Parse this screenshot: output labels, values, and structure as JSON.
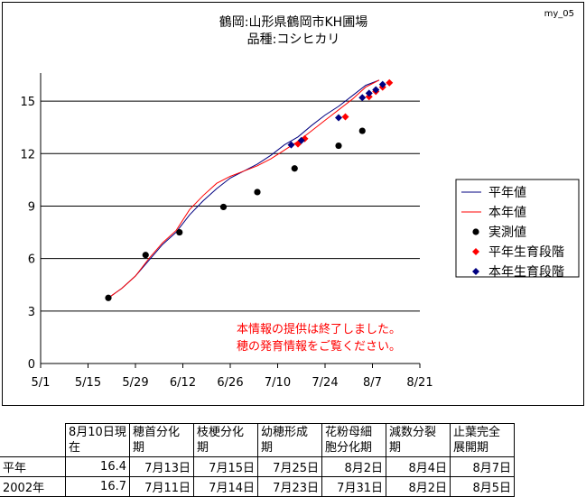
{
  "header": {
    "title_line1": "鶴岡:山形県鶴岡市KH圃場",
    "title_line2": "品種:コシヒカリ",
    "corner_id": "my_05"
  },
  "notice": {
    "line1": "本情報の提供は終了しました。",
    "line2": "穂の発育情報をご覧ください。"
  },
  "chart_data": {
    "type": "line",
    "title": "鶴岡:山形県鶴岡市KH圃場 品種:コシヒカリ",
    "x_tick_labels": [
      "5/1",
      "5/15",
      "5/29",
      "6/12",
      "6/26",
      "7/10",
      "7/24",
      "8/7",
      "8/21"
    ],
    "x_tick_dates": [
      "05-01",
      "05-15",
      "05-29",
      "06-12",
      "06-26",
      "07-10",
      "07-24",
      "08-07",
      "08-21"
    ],
    "xlim": [
      "05-01",
      "08-21"
    ],
    "y_ticks": [
      0,
      3,
      6,
      9,
      12,
      15
    ],
    "ylim": [
      0,
      16.5
    ],
    "grid": "horizontal",
    "legend_position": "right",
    "series": [
      {
        "name": "平年値",
        "kind": "line",
        "color": "#000080",
        "points": [
          [
            "05-21",
            3.75
          ],
          [
            "05-25",
            4.3
          ],
          [
            "05-29",
            5.0
          ],
          [
            "06-02",
            5.9
          ],
          [
            "06-06",
            6.8
          ],
          [
            "06-10",
            7.5
          ],
          [
            "06-14",
            8.5
          ],
          [
            "06-18",
            9.3
          ],
          [
            "06-22",
            10.0
          ],
          [
            "06-26",
            10.6
          ],
          [
            "06-30",
            11.0
          ],
          [
            "07-04",
            11.4
          ],
          [
            "07-08",
            11.9
          ],
          [
            "07-12",
            12.5
          ],
          [
            "07-16",
            12.95
          ],
          [
            "07-20",
            13.6
          ],
          [
            "07-24",
            14.2
          ],
          [
            "07-28",
            14.7
          ],
          [
            "08-01",
            15.3
          ],
          [
            "08-05",
            15.9
          ],
          [
            "08-09",
            16.2
          ]
        ]
      },
      {
        "name": "本年値",
        "kind": "line",
        "color": "#ff0000",
        "points": [
          [
            "05-21",
            3.75
          ],
          [
            "05-25",
            4.3
          ],
          [
            "05-29",
            5.0
          ],
          [
            "06-02",
            6.0
          ],
          [
            "06-06",
            6.9
          ],
          [
            "06-10",
            7.6
          ],
          [
            "06-14",
            8.8
          ],
          [
            "06-18",
            9.6
          ],
          [
            "06-22",
            10.3
          ],
          [
            "06-26",
            10.7
          ],
          [
            "06-30",
            11.0
          ],
          [
            "07-04",
            11.3
          ],
          [
            "07-08",
            11.7
          ],
          [
            "07-12",
            12.2
          ],
          [
            "07-16",
            12.7
          ],
          [
            "07-20",
            13.3
          ],
          [
            "07-24",
            13.9
          ],
          [
            "07-28",
            14.5
          ],
          [
            "08-01",
            15.1
          ],
          [
            "08-05",
            15.8
          ],
          [
            "08-09",
            16.2
          ]
        ]
      },
      {
        "name": "実測値",
        "kind": "dots",
        "color": "#000000",
        "points": [
          [
            "05-21",
            3.75
          ],
          [
            "06-01",
            6.2
          ],
          [
            "06-11",
            7.5
          ],
          [
            "06-24",
            8.95
          ],
          [
            "07-04",
            9.8
          ],
          [
            "07-15",
            11.15
          ],
          [
            "07-28",
            12.45
          ],
          [
            "08-04",
            13.3
          ]
        ]
      },
      {
        "name": "平年生育段階",
        "kind": "diamonds",
        "color": "#ff0000",
        "points": [
          [
            "07-16",
            12.55
          ],
          [
            "07-18",
            12.85
          ],
          [
            "07-30",
            14.1
          ],
          [
            "08-06",
            15.25
          ],
          [
            "08-08",
            15.55
          ],
          [
            "08-10",
            15.8
          ],
          [
            "08-12",
            16.05
          ]
        ]
      },
      {
        "name": "本年生育段階",
        "kind": "diamonds",
        "color": "#000080",
        "points": [
          [
            "07-14",
            12.5
          ],
          [
            "07-17",
            12.75
          ],
          [
            "07-28",
            14.05
          ],
          [
            "08-04",
            15.2
          ],
          [
            "08-06",
            15.45
          ],
          [
            "08-08",
            15.65
          ],
          [
            "08-10",
            15.95
          ]
        ]
      }
    ]
  },
  "stage_table": {
    "columns": [
      "8月10日現在",
      "穂首分化期",
      "枝梗分化期",
      "幼穂形成期",
      "花粉母細胞分化期",
      "減数分裂期",
      "止葉完全展開期"
    ],
    "rows": [
      {
        "label": "平年",
        "values": [
          "16.4",
          "7月13日",
          "7月15日",
          "7月25日",
          "8月2日",
          "8月4日",
          "8月7日"
        ]
      },
      {
        "label": "2002年",
        "values": [
          "16.7",
          "7月11日",
          "7月14日",
          "7月23日",
          "7月31日",
          "8月2日",
          "8月5日"
        ]
      }
    ]
  }
}
